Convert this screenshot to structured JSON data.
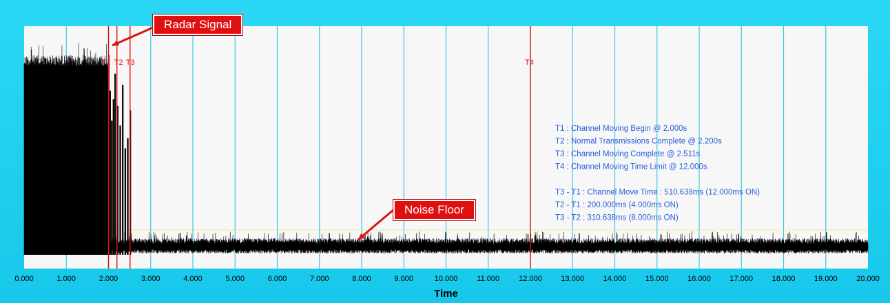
{
  "chart_data": {
    "type": "line",
    "title": "",
    "xlabel": "Time",
    "ylabel": "",
    "xlim": [
      0,
      20
    ],
    "xticks": [
      "0.000",
      "1.000",
      "2.000",
      "3.000",
      "4.000",
      "5.000",
      "6.000",
      "7.000",
      "8.000",
      "9.000",
      "10.000",
      "11.000",
      "12.000",
      "13.000",
      "14.000",
      "15.000",
      "16.000",
      "17.000",
      "18.000",
      "19.000",
      "20.000"
    ],
    "grid": true,
    "signal": {
      "description_segments": [
        {
          "x_start": 0.0,
          "x_end": 2.0,
          "level": "high"
        },
        {
          "x_start": 2.0,
          "x_end": 2.511,
          "level": "bursts"
        },
        {
          "x_start": 2.511,
          "x_end": 20.0,
          "level": "noise"
        }
      ]
    },
    "markers": [
      {
        "label": "T1",
        "x": 2.0
      },
      {
        "label": "T2",
        "x": 2.2
      },
      {
        "label": "T3",
        "x": 2.511
      },
      {
        "label": "T4",
        "x": 12.0
      }
    ],
    "info_lines": [
      "T1 : Channel Moving Begin @ 2.000s",
      "T2 : Normal Transmissions Complete @ 2.200s",
      "T3 : Channel Moving Complete @ 2.511s",
      "T4 : Channel Moving Time Limit @ 12.000s",
      "",
      "T3 - T1 : Channel Move Time : 510.638ms (12.000ms ON)",
      "T2 - T1 : 200.000ms (4.000ms ON)",
      "T3 - T2 : 310.638ms (8.000ms ON)"
    ],
    "annotations": [
      {
        "label": "Radar Signal"
      },
      {
        "label": "Noise Floor"
      }
    ],
    "colors": {
      "frame": "#1fd0f0",
      "plot_bg": "#f7f7f7",
      "grid": "#3cc8e8",
      "signal": "#000000",
      "marker": "#e01010",
      "info": "#2a5fd8",
      "threshold": "#f0e040"
    }
  }
}
